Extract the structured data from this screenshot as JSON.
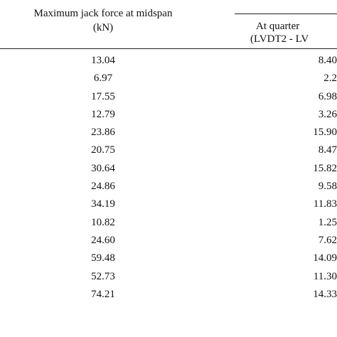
{
  "table": {
    "header": {
      "col1_line1": "Maximum jack force at midspan",
      "col1_line2": "(kN)",
      "col2_line1": "At quarter",
      "col2_line2": "(LVDT2 - LV"
    },
    "rows": [
      {
        "force": "13.04",
        "quarter": "8.40"
      },
      {
        "force": "6.97",
        "quarter": "2.2"
      },
      {
        "force": "17.55",
        "quarter": "6.98"
      },
      {
        "force": "12.79",
        "quarter": "3.26"
      },
      {
        "force": "23.86",
        "quarter": "15.90"
      },
      {
        "force": "20.75",
        "quarter": "8.47"
      },
      {
        "force": "30.64",
        "quarter": "15.82"
      },
      {
        "force": "24.86",
        "quarter": "9.58"
      },
      {
        "force": "34.19",
        "quarter": "11.83"
      },
      {
        "force": "10.82",
        "quarter": "1.25"
      },
      {
        "force": "24.60",
        "quarter": "7.62"
      },
      {
        "force": "59.48",
        "quarter": "14.09"
      },
      {
        "force": "52.73",
        "quarter": "11.30"
      },
      {
        "force": "74.21",
        "quarter": "14.33"
      }
    ]
  }
}
